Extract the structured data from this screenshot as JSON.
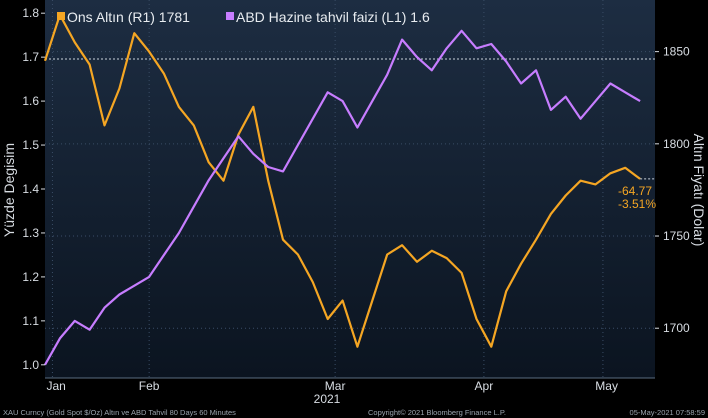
{
  "colors": {
    "background": "#000000",
    "plot_bg_top": "#1d2d42",
    "plot_bg_bottom": "#0b1420",
    "grid": "#3a4d66",
    "text": "#d8dde3",
    "gold": "#f5a623",
    "yield": "#c77dff",
    "footer_text": "#9aa4ae"
  },
  "footer": {
    "left": "XAU Curncy (Gold Spot  $/Oz) Altın ve ABD Tahvil 80 Days 60 Minutes",
    "center": "Copyright© 2021 Bloomberg Finance L.P.",
    "right": "05-May-2021 07:58:59"
  },
  "chart_data": {
    "type": "line",
    "xlabel": "2021",
    "x_ticks": [
      "Jan",
      "Feb",
      "Mar",
      "Apr",
      "May"
    ],
    "left_axis": {
      "label": "Yüzde Degisim",
      "ticks": [
        "1.0",
        "1.1",
        "1.2",
        "1.3",
        "1.4",
        "1.5",
        "1.6",
        "1.7",
        "1.8"
      ],
      "ylim": [
        0.97,
        1.83
      ]
    },
    "right_axis": {
      "label": "Altın Fiyatı (Dolar)",
      "ticks": [
        "1700",
        "1750",
        "1800",
        "1850"
      ],
      "ylim": [
        1673,
        1878
      ]
    },
    "legend": {
      "placement": "top-left",
      "items": [
        {
          "name": "Ons Altın (R1) 1781",
          "color": "#f5a623"
        },
        {
          "name": "ABD Hazine tahvil faizi (L1) 1.6",
          "color": "#c77dff"
        }
      ]
    },
    "reference_line": 1846,
    "annotation": {
      "change": "-64.77",
      "change_pct": "-3.51%"
    },
    "series": [
      {
        "name": "Ons Altın (R1) 1781",
        "axis": "right",
        "color": "#f5a623",
        "x": [
          0,
          2,
          4,
          6,
          8,
          10,
          12,
          14,
          16,
          18,
          20,
          22,
          24,
          26,
          28,
          30,
          32,
          34,
          36,
          38,
          40,
          42,
          44,
          46,
          48,
          50,
          52,
          54,
          56,
          58,
          60,
          62,
          64,
          66,
          68,
          70,
          72,
          74,
          76,
          78,
          80
        ],
        "y": [
          1845,
          1870,
          1855,
          1843,
          1810,
          1830,
          1860,
          1850,
          1838,
          1820,
          1810,
          1790,
          1780,
          1805,
          1820,
          1780,
          1748,
          1740,
          1725,
          1705,
          1715,
          1690,
          1715,
          1740,
          1745,
          1736,
          1742,
          1738,
          1730,
          1705,
          1690,
          1720,
          1735,
          1748,
          1762,
          1772,
          1780,
          1778,
          1784,
          1787,
          1781
        ]
      },
      {
        "name": "ABD Hazine tahvil faizi (L1) 1.6",
        "axis": "left",
        "color": "#c77dff",
        "x": [
          0,
          2,
          4,
          6,
          8,
          10,
          12,
          14,
          16,
          18,
          20,
          22,
          24,
          26,
          28,
          30,
          32,
          34,
          36,
          38,
          40,
          42,
          44,
          46,
          48,
          50,
          52,
          54,
          56,
          58,
          60,
          62,
          64,
          66,
          68,
          70,
          72,
          74,
          76,
          78,
          80
        ],
        "y": [
          1.0,
          1.06,
          1.1,
          1.08,
          1.13,
          1.16,
          1.18,
          1.2,
          1.25,
          1.3,
          1.36,
          1.42,
          1.47,
          1.52,
          1.48,
          1.45,
          1.44,
          1.5,
          1.56,
          1.62,
          1.6,
          1.54,
          1.6,
          1.66,
          1.74,
          1.7,
          1.67,
          1.72,
          1.76,
          1.72,
          1.73,
          1.69,
          1.64,
          1.67,
          1.58,
          1.61,
          1.56,
          1.6,
          1.64,
          1.62,
          1.6
        ]
      }
    ]
  }
}
